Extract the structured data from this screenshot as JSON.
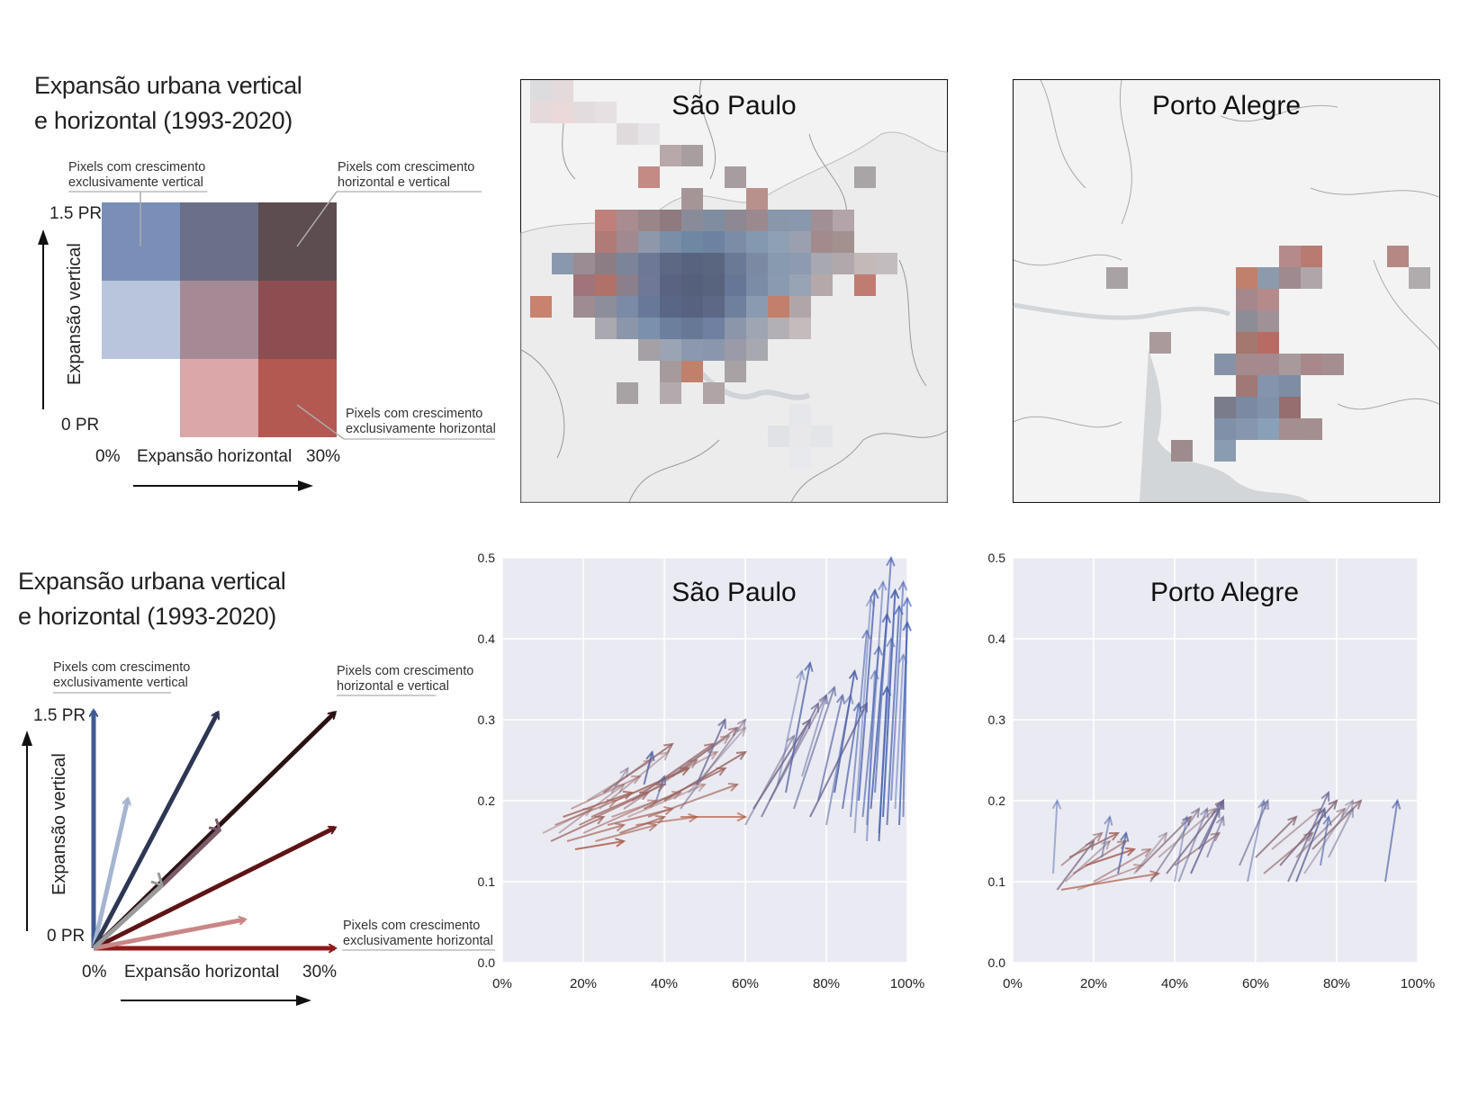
{
  "legend_top": {
    "title_line1": "Expansão urbana vertical",
    "title_line2": "e horizontal (1993-2020)",
    "label_vertical_only_1": "Pixels com crescimento",
    "label_vertical_only_2": "exclusivamente vertical",
    "label_both_1": "Pixels com crescimento",
    "label_both_2": "horizontal e vertical",
    "label_horizontal_only_1": "Pixels com crescimento",
    "label_horizontal_only_2": "exclusivamente horizontal",
    "y_max": "1.5 PR",
    "y_min": "0 PR",
    "y_axis": "Expansão vertical",
    "x_min": "0%",
    "x_axis": "Expansão horizontal",
    "x_max": "30%",
    "bivariate_colors": [
      [
        "#7a8fb8",
        "#6b7088",
        "#5d4c50"
      ],
      [
        "#b8c5dc",
        "#a58a96",
        "#8c4e50"
      ],
      [
        null,
        "#dba7a9",
        "#b45852"
      ]
    ]
  },
  "legend_bottom": {
    "title_line1": "Expansão urbana vertical",
    "title_line2": "e horizontal (1993-2020)",
    "label_vertical_only_1": "Pixels com crescimento",
    "label_vertical_only_2": "exclusivamente vertical",
    "label_both_1": "Pixels com crescimento",
    "label_both_2": "horizontal e vertical",
    "label_horizontal_only_1": "Pixels com crescimento",
    "label_horizontal_only_2": "exclusivamente horizontal",
    "y_max": "1.5 PR",
    "y_min": "0 PR",
    "y_axis": "Expansão vertical",
    "x_min": "0%",
    "x_axis": "Expansão horizontal",
    "x_max": "30%"
  },
  "maps": {
    "sao_paulo": {
      "title": "São Paulo"
    },
    "porto_alegre": {
      "title": "Porto Alegre"
    }
  },
  "chart_data": [
    {
      "type": "scatter",
      "title": "São Paulo",
      "xlabel": "",
      "ylabel": "",
      "xlim": [
        0,
        100
      ],
      "ylim": [
        0,
        0.5
      ],
      "x_ticks": [
        "0%",
        "20%",
        "40%",
        "60%",
        "80%",
        "100%"
      ],
      "y_ticks": [
        "0.0",
        "0.1",
        "0.2",
        "0.3",
        "0.4",
        "0.5"
      ],
      "grid": true,
      "arrows": [
        {
          "x0": 10,
          "y0": 0.16,
          "x1": 22,
          "y1": 0.19
        },
        {
          "x0": 12,
          "y0": 0.15,
          "x1": 25,
          "y1": 0.18
        },
        {
          "x0": 13,
          "y0": 0.17,
          "x1": 28,
          "y1": 0.2
        },
        {
          "x0": 14,
          "y0": 0.16,
          "x1": 30,
          "y1": 0.22
        },
        {
          "x0": 15,
          "y0": 0.18,
          "x1": 32,
          "y1": 0.21
        },
        {
          "x0": 16,
          "y0": 0.15,
          "x1": 30,
          "y1": 0.17
        },
        {
          "x0": 17,
          "y0": 0.19,
          "x1": 34,
          "y1": 0.23
        },
        {
          "x0": 18,
          "y0": 0.14,
          "x1": 30,
          "y1": 0.15
        },
        {
          "x0": 19,
          "y0": 0.17,
          "x1": 36,
          "y1": 0.21
        },
        {
          "x0": 20,
          "y0": 0.16,
          "x1": 38,
          "y1": 0.2
        },
        {
          "x0": 21,
          "y0": 0.2,
          "x1": 37,
          "y1": 0.25
        },
        {
          "x0": 22,
          "y0": 0.18,
          "x1": 40,
          "y1": 0.22
        },
        {
          "x0": 23,
          "y0": 0.15,
          "x1": 38,
          "y1": 0.17
        },
        {
          "x0": 24,
          "y0": 0.19,
          "x1": 41,
          "y1": 0.26
        },
        {
          "x0": 25,
          "y0": 0.21,
          "x1": 42,
          "y1": 0.27
        },
        {
          "x0": 26,
          "y0": 0.17,
          "x1": 42,
          "y1": 0.19
        },
        {
          "x0": 27,
          "y0": 0.18,
          "x1": 44,
          "y1": 0.21
        },
        {
          "x0": 28,
          "y0": 0.2,
          "x1": 46,
          "y1": 0.24
        },
        {
          "x0": 29,
          "y0": 0.16,
          "x1": 40,
          "y1": 0.18
        },
        {
          "x0": 30,
          "y0": 0.19,
          "x1": 48,
          "y1": 0.25
        },
        {
          "x0": 31,
          "y0": 0.18,
          "x1": 50,
          "y1": 0.22
        },
        {
          "x0": 32,
          "y0": 0.2,
          "x1": 52,
          "y1": 0.27
        },
        {
          "x0": 33,
          "y0": 0.17,
          "x1": 48,
          "y1": 0.18
        },
        {
          "x0": 34,
          "y0": 0.21,
          "x1": 53,
          "y1": 0.26
        },
        {
          "x0": 35,
          "y0": 0.19,
          "x1": 55,
          "y1": 0.24
        },
        {
          "x0": 36,
          "y0": 0.18,
          "x1": 58,
          "y1": 0.22
        },
        {
          "x0": 38,
          "y0": 0.22,
          "x1": 56,
          "y1": 0.28
        },
        {
          "x0": 40,
          "y0": 0.2,
          "x1": 60,
          "y1": 0.26
        },
        {
          "x0": 42,
          "y0": 0.23,
          "x1": 58,
          "y1": 0.29
        },
        {
          "x0": 44,
          "y0": 0.19,
          "x1": 60,
          "y1": 0.3
        },
        {
          "x0": 46,
          "y0": 0.21,
          "x1": 60,
          "y1": 0.29
        },
        {
          "x0": 48,
          "y0": 0.22,
          "x1": 55,
          "y1": 0.3
        },
        {
          "x0": 38,
          "y0": 0.2,
          "x1": 40,
          "y1": 0.23
        },
        {
          "x0": 27,
          "y0": 0.21,
          "x1": 31,
          "y1": 0.24
        },
        {
          "x0": 35,
          "y0": 0.22,
          "x1": 37,
          "y1": 0.26
        },
        {
          "x0": 44,
          "y0": 0.18,
          "x1": 60,
          "y1": 0.18
        },
        {
          "x0": 60,
          "y0": 0.17,
          "x1": 72,
          "y1": 0.28
        },
        {
          "x0": 62,
          "y0": 0.19,
          "x1": 76,
          "y1": 0.3
        },
        {
          "x0": 64,
          "y0": 0.18,
          "x1": 78,
          "y1": 0.32
        },
        {
          "x0": 66,
          "y0": 0.2,
          "x1": 80,
          "y1": 0.33
        },
        {
          "x0": 68,
          "y0": 0.22,
          "x1": 74,
          "y1": 0.36
        },
        {
          "x0": 70,
          "y0": 0.21,
          "x1": 76,
          "y1": 0.37
        },
        {
          "x0": 72,
          "y0": 0.19,
          "x1": 82,
          "y1": 0.34
        },
        {
          "x0": 74,
          "y0": 0.23,
          "x1": 80,
          "y1": 0.33
        },
        {
          "x0": 76,
          "y0": 0.18,
          "x1": 90,
          "y1": 0.32
        },
        {
          "x0": 78,
          "y0": 0.2,
          "x1": 84,
          "y1": 0.33
        },
        {
          "x0": 80,
          "y0": 0.17,
          "x1": 86,
          "y1": 0.33
        },
        {
          "x0": 82,
          "y0": 0.21,
          "x1": 87,
          "y1": 0.36
        },
        {
          "x0": 84,
          "y0": 0.19,
          "x1": 88,
          "y1": 0.32
        },
        {
          "x0": 86,
          "y0": 0.18,
          "x1": 90,
          "y1": 0.41
        },
        {
          "x0": 87,
          "y0": 0.16,
          "x1": 91,
          "y1": 0.45
        },
        {
          "x0": 88,
          "y0": 0.2,
          "x1": 92,
          "y1": 0.46
        },
        {
          "x0": 89,
          "y0": 0.18,
          "x1": 93,
          "y1": 0.39
        },
        {
          "x0": 90,
          "y0": 0.17,
          "x1": 94,
          "y1": 0.47
        },
        {
          "x0": 91,
          "y0": 0.19,
          "x1": 95,
          "y1": 0.43
        },
        {
          "x0": 92,
          "y0": 0.21,
          "x1": 96,
          "y1": 0.5
        },
        {
          "x0": 93,
          "y0": 0.16,
          "x1": 96,
          "y1": 0.4
        },
        {
          "x0": 94,
          "y0": 0.18,
          "x1": 97,
          "y1": 0.46
        },
        {
          "x0": 95,
          "y0": 0.17,
          "x1": 98,
          "y1": 0.44
        },
        {
          "x0": 96,
          "y0": 0.2,
          "x1": 99,
          "y1": 0.47
        },
        {
          "x0": 97,
          "y0": 0.19,
          "x1": 99,
          "y1": 0.38
        },
        {
          "x0": 98,
          "y0": 0.17,
          "x1": 100,
          "y1": 0.42
        },
        {
          "x0": 99,
          "y0": 0.18,
          "x1": 100,
          "y1": 0.45
        },
        {
          "x0": 90,
          "y0": 0.15,
          "x1": 92,
          "y1": 0.36
        },
        {
          "x0": 93,
          "y0": 0.15,
          "x1": 95,
          "y1": 0.34
        }
      ]
    },
    {
      "type": "scatter",
      "title": "Porto Alegre",
      "xlabel": "",
      "ylabel": "",
      "xlim": [
        0,
        100
      ],
      "ylim": [
        0,
        0.5
      ],
      "x_ticks": [
        "0%",
        "20%",
        "40%",
        "60%",
        "80%",
        "100%"
      ],
      "y_ticks": [
        "0.0",
        "0.1",
        "0.2",
        "0.3",
        "0.4",
        "0.5"
      ],
      "grid": true,
      "arrows": [
        {
          "x0": 10,
          "y0": 0.11,
          "x1": 11,
          "y1": 0.2
        },
        {
          "x0": 11,
          "y0": 0.09,
          "x1": 20,
          "y1": 0.15
        },
        {
          "x0": 12,
          "y0": 0.12,
          "x1": 22,
          "y1": 0.16
        },
        {
          "x0": 13,
          "y0": 0.1,
          "x1": 24,
          "y1": 0.15
        },
        {
          "x0": 14,
          "y0": 0.13,
          "x1": 26,
          "y1": 0.16
        },
        {
          "x0": 15,
          "y0": 0.11,
          "x1": 28,
          "y1": 0.15
        },
        {
          "x0": 16,
          "y0": 0.09,
          "x1": 32,
          "y1": 0.12
        },
        {
          "x0": 18,
          "y0": 0.12,
          "x1": 30,
          "y1": 0.14
        },
        {
          "x0": 12,
          "y0": 0.09,
          "x1": 36,
          "y1": 0.11
        },
        {
          "x0": 20,
          "y0": 0.1,
          "x1": 34,
          "y1": 0.14
        },
        {
          "x0": 30,
          "y0": 0.11,
          "x1": 38,
          "y1": 0.16
        },
        {
          "x0": 32,
          "y0": 0.12,
          "x1": 44,
          "y1": 0.18
        },
        {
          "x0": 34,
          "y0": 0.1,
          "x1": 46,
          "y1": 0.19
        },
        {
          "x0": 36,
          "y0": 0.13,
          "x1": 50,
          "y1": 0.19
        },
        {
          "x0": 38,
          "y0": 0.11,
          "x1": 52,
          "y1": 0.2
        },
        {
          "x0": 40,
          "y0": 0.12,
          "x1": 51,
          "y1": 0.16
        },
        {
          "x0": 41,
          "y0": 0.1,
          "x1": 48,
          "y1": 0.19
        },
        {
          "x0": 44,
          "y0": 0.11,
          "x1": 52,
          "y1": 0.2
        },
        {
          "x0": 46,
          "y0": 0.14,
          "x1": 51,
          "y1": 0.19
        },
        {
          "x0": 48,
          "y0": 0.13,
          "x1": 52,
          "y1": 0.18
        },
        {
          "x0": 40,
          "y0": 0.1,
          "x1": 43,
          "y1": 0.18
        },
        {
          "x0": 26,
          "y0": 0.11,
          "x1": 28,
          "y1": 0.16
        },
        {
          "x0": 56,
          "y0": 0.12,
          "x1": 63,
          "y1": 0.2
        },
        {
          "x0": 58,
          "y0": 0.1,
          "x1": 62,
          "y1": 0.2
        },
        {
          "x0": 60,
          "y0": 0.13,
          "x1": 70,
          "y1": 0.18
        },
        {
          "x0": 62,
          "y0": 0.11,
          "x1": 74,
          "y1": 0.16
        },
        {
          "x0": 64,
          "y0": 0.14,
          "x1": 76,
          "y1": 0.19
        },
        {
          "x0": 66,
          "y0": 0.12,
          "x1": 80,
          "y1": 0.2
        },
        {
          "x0": 68,
          "y0": 0.1,
          "x1": 78,
          "y1": 0.21
        },
        {
          "x0": 70,
          "y0": 0.13,
          "x1": 82,
          "y1": 0.19
        },
        {
          "x0": 72,
          "y0": 0.11,
          "x1": 84,
          "y1": 0.2
        },
        {
          "x0": 74,
          "y0": 0.14,
          "x1": 86,
          "y1": 0.2
        },
        {
          "x0": 76,
          "y0": 0.12,
          "x1": 78,
          "y1": 0.18
        },
        {
          "x0": 78,
          "y0": 0.13,
          "x1": 84,
          "y1": 0.19
        },
        {
          "x0": 70,
          "y0": 0.1,
          "x1": 77,
          "y1": 0.19
        },
        {
          "x0": 92,
          "y0": 0.1,
          "x1": 95,
          "y1": 0.2
        },
        {
          "x0": 22,
          "y0": 0.13,
          "x1": 24,
          "y1": 0.18
        }
      ]
    }
  ]
}
